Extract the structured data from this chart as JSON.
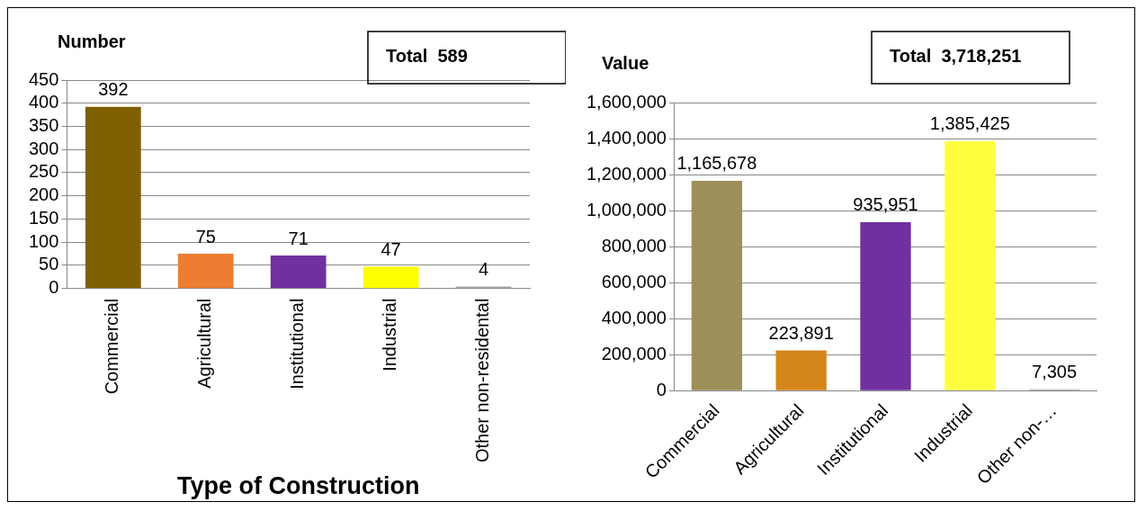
{
  "chart_data": [
    {
      "type": "bar",
      "ylabel": "Number",
      "xlabel": "Type of Construction",
      "annotations": [
        "Total  589"
      ],
      "categories": [
        "Commercial",
        "Agricultural",
        "Institutional",
        "Industrial",
        "Other non-residental"
      ],
      "values": [
        392,
        75,
        71,
        47,
        4
      ],
      "colors": [
        "#7f6000",
        "#ed7d31",
        "#7030a0",
        "#ffff00",
        "#a5a5a5"
      ],
      "ylim": [
        0,
        450
      ],
      "yticks": [
        0,
        50,
        100,
        150,
        200,
        250,
        300,
        350,
        400,
        450
      ],
      "grid": "y",
      "data_labels": true
    },
    {
      "type": "bar",
      "ylabel": "Value",
      "annotations": [
        "Total  3,718,251"
      ],
      "categories": [
        "Commercial",
        "Agricultural",
        "Institutional",
        "Industrial",
        "Other non-…"
      ],
      "values": [
        1165678,
        223891,
        935951,
        1385425,
        7305
      ],
      "value_labels": [
        "1,165,678",
        "223,891",
        "935,951",
        "1,385,425",
        "7,305"
      ],
      "colors": [
        "#9c8f5a",
        "#d4861a",
        "#7030a0",
        "#ffff40",
        "#a5a5a5"
      ],
      "ylim": [
        0,
        1600000
      ],
      "yticks": [
        {
          "value": 0,
          "label": "0"
        },
        {
          "value": 200000,
          "label": "200,000"
        },
        {
          "value": 400000,
          "label": "400,000"
        },
        {
          "value": 600000,
          "label": "600,000"
        },
        {
          "value": 800000,
          "label": "800,000"
        },
        {
          "value": 1000000,
          "label": "1,000,000"
        },
        {
          "value": 1200000,
          "label": "1,200,000"
        },
        {
          "value": 1400000,
          "label": "1,400,000"
        },
        {
          "value": 1600000,
          "label": "1,600,000"
        }
      ],
      "grid": "y"
    }
  ]
}
